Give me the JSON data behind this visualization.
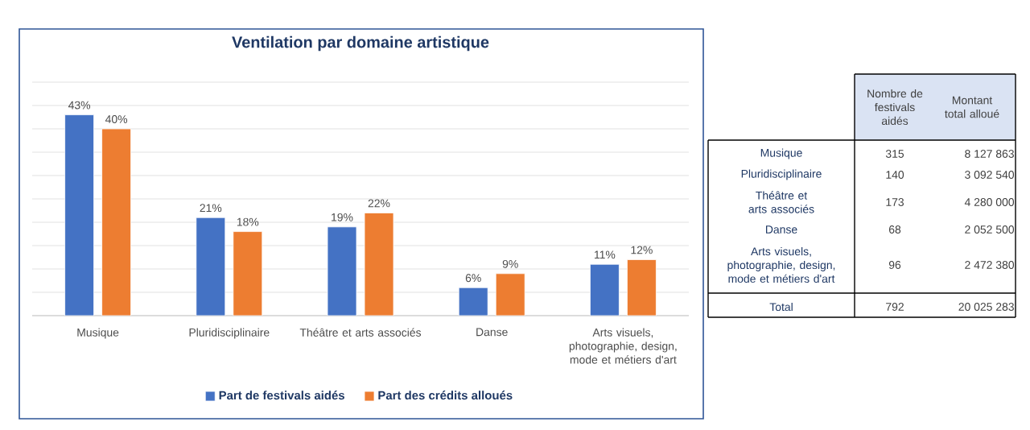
{
  "chart_data": [
    {
      "type": "bar",
      "title": "Ventilation par domaine artistique",
      "categories": [
        "Musique",
        "Pluridisciplinaire",
        "Théâtre et arts associés",
        "Danse",
        "Arts visuels, photographie, design, mode et métiers d'art"
      ],
      "series": [
        {
          "name": "Part de festivals aidés",
          "color": "#4472c4",
          "values": [
            43,
            21,
            19,
            6,
            11
          ],
          "value_labels": [
            "43%",
            "21%",
            "19%",
            "6%",
            "11%"
          ]
        },
        {
          "name": "Part des crédits alloués",
          "color": "#ed7d31",
          "values": [
            40,
            18,
            22,
            9,
            12
          ],
          "value_labels": [
            "40%",
            "18%",
            "22%",
            "9%",
            "12%"
          ]
        }
      ],
      "ylim": [
        0,
        50
      ],
      "yticks": [
        0,
        5,
        10,
        15,
        20,
        25,
        30,
        35,
        40,
        45,
        50
      ],
      "grid": "y",
      "legend": "bottom",
      "tick_labels": "x"
    },
    {
      "type": "other",
      "categories": [
        "Musique",
        "Pluridisciplinaire",
        "Théâtre et arts associés",
        "Danse",
        "Arts visuels, photographie, design, mode et métiers d'art",
        "Total"
      ],
      "series": [
        {
          "name": "Nombre de festivals aidés",
          "values": [
            315,
            140,
            173,
            68,
            96,
            792
          ],
          "value_labels": [
            "315",
            "140",
            "173",
            "68",
            "96",
            "792"
          ]
        },
        {
          "name": "Montant total alloué",
          "values": [
            8127863,
            3092540,
            4280000,
            2052500,
            2472380,
            20025283
          ],
          "value_labels": [
            "8 127 863",
            "3 092 540",
            "4 280 000",
            "2 052 500",
            "2 472 380",
            "20 025 283"
          ]
        }
      ]
    }
  ]
}
